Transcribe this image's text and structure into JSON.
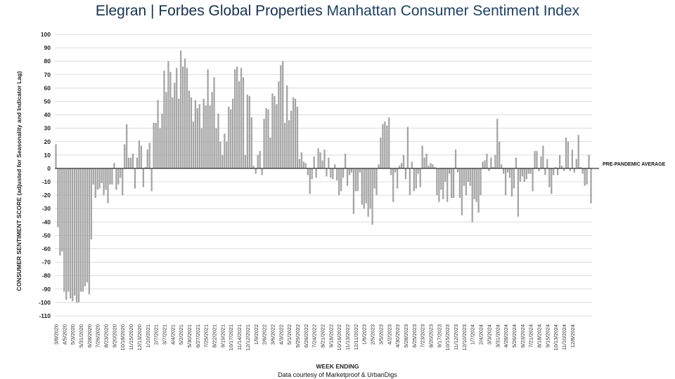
{
  "header": {
    "brand": "Elegran | Forbes Global Properties",
    "subtitle": "Manhattan Consumer Sentiment Index"
  },
  "footer": {
    "credit": "Data courtesy of Marketproof & UrbanDigs"
  },
  "chart_data": {
    "type": "bar",
    "title": "Elegran | Forbes Global Properties Manhattan Consumer Sentiment Index",
    "xlabel": "WEEK ENDING",
    "ylabel": "CONSUMER SENTIMENT SCORE (adjusted for Seasonality and Indicator Lag)",
    "ylim": [
      -110,
      100
    ],
    "yticks": [
      100,
      90,
      80,
      70,
      60,
      50,
      40,
      30,
      20,
      10,
      0,
      -10,
      -20,
      -30,
      -40,
      -50,
      -60,
      -70,
      -80,
      -90,
      -100,
      -110
    ],
    "grid": true,
    "reference_line": {
      "value": 0,
      "label": "PRE-PANDEMIC AVERAGE"
    },
    "x_tick_labels": [
      "3/8/2020",
      "4/5/2020",
      "5/3/2020",
      "5/31/2020",
      "6/28/2020",
      "7/26/2020",
      "8/23/2020",
      "9/20/2020",
      "10/18/2020",
      "11/15/2020",
      "12/13/2020",
      "1/10/2021",
      "2/7/2021",
      "3/7/2021",
      "4/4/2021",
      "5/2/2021",
      "5/30/2021",
      "6/27/2021",
      "7/25/2021",
      "8/22/2021",
      "9/19/2021",
      "10/17/2021",
      "11/14/2021",
      "12/12/2021",
      "1/9/2022",
      "2/6/2022",
      "3/6/2022",
      "4/3/2022",
      "5/1/2022",
      "5/29/2022",
      "6/26/2022",
      "7/24/2022",
      "8/21/2022",
      "9/18/2022",
      "10/16/2022",
      "11/13/2022",
      "12/11/2022",
      "1/8/2023",
      "2/5/2023",
      "3/5/2023",
      "4/2/2023",
      "4/30/2023",
      "5/28/2023",
      "6/25/2023",
      "7/23/2023",
      "8/20/2023",
      "9/17/2023",
      "10/15/2023",
      "11/12/2023",
      "12/10/2023",
      "1/7/2024",
      "2/4/2024",
      "3/3/2024",
      "3/31/2024",
      "4/28/2024",
      "5/26/2024",
      "6/23/2024",
      "7/21/2024",
      "8/18/2024",
      "9/15/2024",
      "10/13/2024",
      "11/10/2024",
      "12/8/2024"
    ],
    "tick_every_weeks": 4,
    "series": [
      {
        "values": [
          18,
          -44,
          -65,
          -62,
          -92,
          -98,
          -92,
          -97,
          -99,
          -95,
          -100,
          -100,
          -92,
          -92,
          -88,
          -85,
          -94,
          -53,
          -12,
          -22,
          -16,
          -15,
          -11,
          -20,
          -16,
          -26,
          -12,
          -12,
          4,
          -16,
          -12,
          -7,
          -20,
          18,
          33,
          8,
          8,
          11,
          -15,
          8,
          21,
          17,
          -14,
          1,
          14,
          19,
          -17,
          34,
          34,
          51,
          30,
          41,
          73,
          57,
          80,
          72,
          53,
          64,
          75,
          52,
          88,
          76,
          82,
          75,
          58,
          53,
          35,
          51,
          45,
          48,
          30,
          52,
          47,
          74,
          47,
          57,
          68,
          30,
          41,
          20,
          10,
          26,
          20,
          46,
          44,
          52,
          74,
          76,
          65,
          75,
          68,
          10,
          55,
          54,
          38,
          2,
          -4,
          10,
          13,
          -5,
          37,
          45,
          44,
          23,
          56,
          54,
          48,
          65,
          77,
          80,
          34,
          62,
          36,
          43,
          53,
          52,
          46,
          7,
          12,
          5,
          4,
          -5,
          -19,
          -8,
          9,
          -7,
          15,
          12,
          6,
          14,
          -6,
          8,
          -7,
          -8,
          3,
          -9,
          -20,
          -17,
          -7,
          11,
          -13,
          -5,
          -3,
          -34,
          -17,
          -17,
          -3,
          -27,
          -30,
          -26,
          -36,
          -30,
          -42,
          -15,
          -20,
          3,
          23,
          33,
          35,
          32,
          38,
          -5,
          -25,
          -3,
          -15,
          2,
          4,
          10,
          -8,
          31,
          -20,
          5,
          -17,
          -15,
          -4,
          -14,
          17,
          8,
          11,
          2,
          4,
          3,
          1,
          -20,
          -25,
          -16,
          -23,
          -10,
          -25,
          -4,
          -22,
          -22,
          14,
          -3,
          -22,
          -35,
          -13,
          -20,
          -10,
          -13,
          -40,
          -23,
          -25,
          -33,
          -20,
          5,
          6,
          11,
          -2,
          8,
          1,
          10,
          37,
          20,
          3,
          -4,
          -20,
          -3,
          -7,
          -21,
          -15,
          8,
          -36,
          -10,
          -6,
          -10,
          -8,
          -4,
          -4,
          -17,
          13,
          13,
          -2,
          9,
          17,
          -5,
          7,
          -14,
          -19,
          -5,
          1,
          -5,
          10,
          2,
          -2,
          23,
          20,
          -2,
          14,
          -3,
          7,
          25,
          1,
          -4,
          -13,
          -12,
          10,
          -26
        ]
      }
    ]
  }
}
